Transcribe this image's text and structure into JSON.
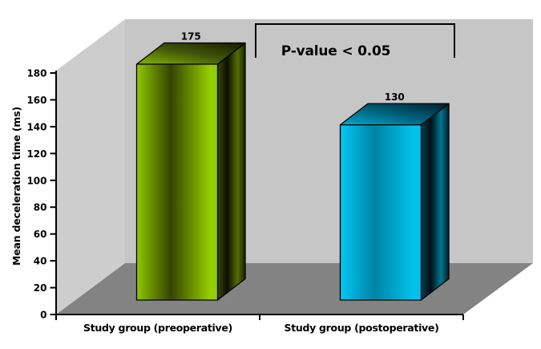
{
  "chart_data": {
    "type": "bar",
    "projection": "3d",
    "title": "",
    "categories": [
      "Study group (preoperative)",
      "Study group (postoperative)"
    ],
    "values": [
      175,
      130
    ],
    "value_labels": [
      "175",
      "130"
    ],
    "xlabel": "",
    "ylabel": "Mean deceleration time (ms)",
    "ylim": [
      0,
      180
    ],
    "ytick_step": 20,
    "yticks": [
      0,
      20,
      40,
      60,
      80,
      100,
      120,
      140,
      160,
      180
    ],
    "grid": false,
    "legend": false,
    "annotation": "P-value < 0.05",
    "bar_styles": [
      {
        "name": "olive-green",
        "front": [
          "#8FC800",
          "#364400",
          "#94CD00"
        ],
        "side": [
          "#3A4800",
          "#0B0E00",
          "#566C00",
          "#1A2100"
        ],
        "top": [
          "#86B500",
          "#42560A",
          "#161C00"
        ]
      },
      {
        "name": "cyan-blue",
        "front": [
          "#00C8F4",
          "#0084A6",
          "#00C2EC"
        ],
        "side": [
          "#00414F",
          "#000E14",
          "#00768E",
          "#001E26"
        ],
        "top": [
          "#00A9CE",
          "#00607A",
          "#001F2A"
        ]
      }
    ],
    "wall_colors": {
      "left": "#CDCDCD",
      "back": "#C6C6C6",
      "floor": "#838383"
    },
    "axis_color": "#000000",
    "text_color": "#000000",
    "background": "#FFFFFF"
  }
}
